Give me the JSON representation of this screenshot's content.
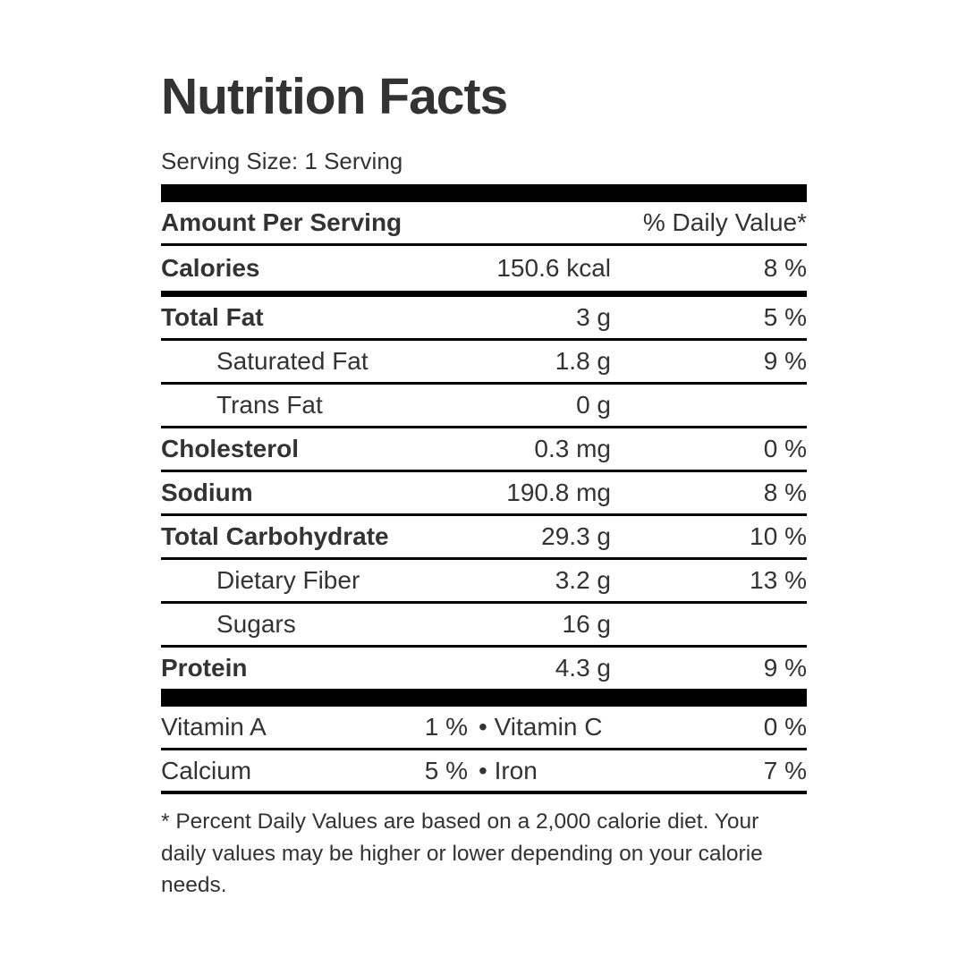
{
  "label": {
    "title": "Nutrition Facts",
    "serving_size": "Serving Size: 1 Serving",
    "header": {
      "left": "Amount Per Serving",
      "right": "% Daily Value*"
    },
    "calories": {
      "name": "Calories",
      "amount": "150.6 kcal",
      "daily_value": "8 %"
    },
    "nutrients": [
      {
        "name": "Total Fat",
        "amount": "3 g",
        "daily_value": "5 %",
        "bold": true,
        "indent": false
      },
      {
        "name": "Saturated Fat",
        "amount": "1.8 g",
        "daily_value": "9 %",
        "bold": false,
        "indent": true
      },
      {
        "name": "Trans Fat",
        "amount": "0 g",
        "daily_value": "",
        "bold": false,
        "indent": true
      },
      {
        "name": "Cholesterol",
        "amount": "0.3 mg",
        "daily_value": "0 %",
        "bold": true,
        "indent": false
      },
      {
        "name": "Sodium",
        "amount": "190.8 mg",
        "daily_value": "8 %",
        "bold": true,
        "indent": false
      },
      {
        "name": "Total Carbohydrate",
        "amount": "29.3 g",
        "daily_value": "10 %",
        "bold": true,
        "indent": false
      },
      {
        "name": "Dietary Fiber",
        "amount": "3.2 g",
        "daily_value": "13 %",
        "bold": false,
        "indent": true
      },
      {
        "name": "Sugars",
        "amount": "16 g",
        "daily_value": "",
        "bold": false,
        "indent": true
      },
      {
        "name": "Protein",
        "amount": "4.3 g",
        "daily_value": "9 %",
        "bold": true,
        "indent": false
      }
    ],
    "micronutrients": [
      {
        "name": "Vitamin A",
        "value": "1 %",
        "pair_name": "• Vitamin C",
        "pair_value": "0 %"
      },
      {
        "name": "Calcium",
        "value": "5 %",
        "pair_name": "• Iron",
        "pair_value": "7 %"
      }
    ],
    "footnote": "* Percent Daily Values are based on a 2,000 calorie diet. Your daily values may be higher or lower depending on your calorie needs.",
    "colors": {
      "text": "#333333",
      "rule": "#000000",
      "background": "#ffffff"
    }
  }
}
